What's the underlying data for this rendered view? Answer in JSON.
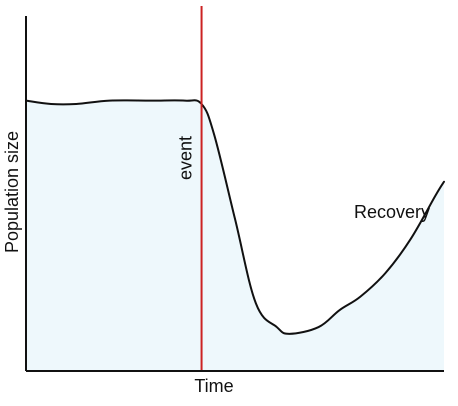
{
  "chart_data": {
    "type": "area",
    "xlabel": "Time",
    "ylabel": "Population size",
    "annotations": {
      "event": "event",
      "recovery": "Recovery"
    },
    "series": [
      {
        "x": [
          0,
          0.6,
          1.2,
          2.0,
          3.0,
          3.8,
          4.2,
          4.5,
          5.0,
          5.5,
          6.0,
          6.3,
          7.0,
          7.5,
          8.0,
          8.6,
          9.2,
          9.8,
          10.0
        ],
        "values": [
          0.8,
          0.79,
          0.79,
          0.8,
          0.8,
          0.8,
          0.79,
          0.7,
          0.45,
          0.2,
          0.13,
          0.11,
          0.13,
          0.18,
          0.22,
          0.29,
          0.39,
          0.52,
          0.56
        ]
      }
    ],
    "event_x": 4.2,
    "xlim": [
      0,
      10
    ],
    "ylim": [
      0,
      1.08
    ],
    "colors": {
      "curve": "#111111",
      "fill": "#eef8fc",
      "event_line": "#cc2222",
      "axis": "#111111"
    },
    "grid": false,
    "legend": "none"
  }
}
